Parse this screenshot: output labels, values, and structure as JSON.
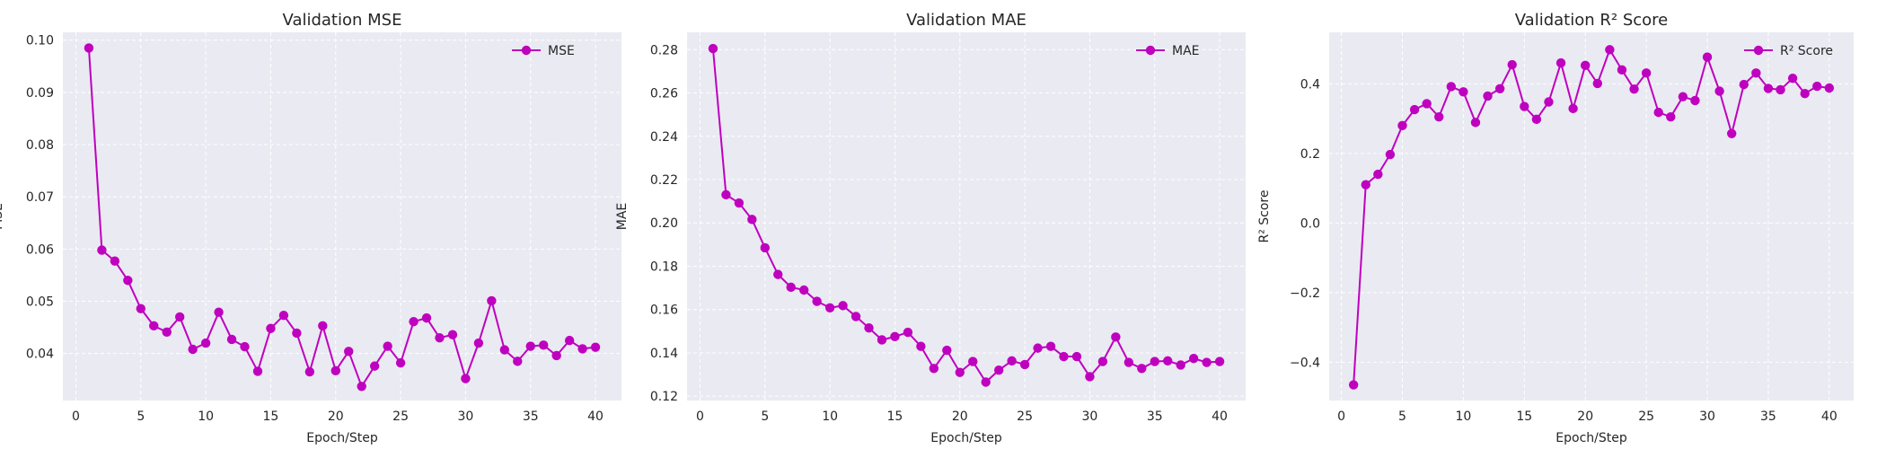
{
  "chart_data": [
    {
      "type": "line",
      "title": "Validation MSE",
      "xlabel": "Epoch/Step",
      "ylabel": "MSE",
      "xlim": [
        -1,
        42
      ],
      "ylim": [
        0.031,
        0.1015
      ],
      "xticks": [
        0,
        5,
        10,
        15,
        20,
        25,
        30,
        35,
        40
      ],
      "xtick_labels": [
        "0",
        "5",
        "10",
        "15",
        "20",
        "25",
        "30",
        "35",
        "40"
      ],
      "yticks": [
        0.04,
        0.05,
        0.06,
        0.07,
        0.08,
        0.09,
        0.1
      ],
      "ytick_labels": [
        "0.04",
        "0.05",
        "0.06",
        "0.07",
        "0.08",
        "0.09",
        "0.10"
      ],
      "grid": true,
      "legend": "top-right",
      "color": "#bf00bf",
      "series": [
        {
          "name": "MSE",
          "x": [
            1,
            2,
            3,
            4,
            5,
            6,
            7,
            8,
            9,
            10,
            11,
            12,
            13,
            14,
            15,
            16,
            17,
            18,
            19,
            20,
            21,
            22,
            23,
            24,
            25,
            26,
            27,
            28,
            29,
            30,
            31,
            32,
            33,
            34,
            35,
            36,
            37,
            38,
            39,
            40
          ],
          "y": [
            0.0985,
            0.0598,
            0.0577,
            0.054,
            0.0486,
            0.0453,
            0.0441,
            0.047,
            0.0408,
            0.042,
            0.0479,
            0.0427,
            0.0413,
            0.0366,
            0.0448,
            0.0473,
            0.0439,
            0.0365,
            0.0453,
            0.0367,
            0.0404,
            0.0337,
            0.0376,
            0.0414,
            0.0382,
            0.0461,
            0.0468,
            0.043,
            0.0436,
            0.0352,
            0.042,
            0.0501,
            0.0407,
            0.0385,
            0.0414,
            0.0416,
            0.0396,
            0.0425,
            0.0409,
            0.0412
          ]
        }
      ]
    },
    {
      "type": "line",
      "title": "Validation MAE",
      "xlabel": "Epoch/Step",
      "ylabel": "MAE",
      "xlim": [
        -1,
        42
      ],
      "ylim": [
        0.118,
        0.288
      ],
      "xticks": [
        0,
        5,
        10,
        15,
        20,
        25,
        30,
        35,
        40
      ],
      "xtick_labels": [
        "0",
        "5",
        "10",
        "15",
        "20",
        "25",
        "30",
        "35",
        "40"
      ],
      "yticks": [
        0.12,
        0.14,
        0.16,
        0.18,
        0.2,
        0.22,
        0.24,
        0.26,
        0.28
      ],
      "ytick_labels": [
        "0.12",
        "0.14",
        "0.16",
        "0.18",
        "0.20",
        "0.22",
        "0.24",
        "0.26",
        "0.28"
      ],
      "grid": true,
      "legend": "top-right",
      "color": "#bf00bf",
      "series": [
        {
          "name": "MAE",
          "x": [
            1,
            2,
            3,
            4,
            5,
            6,
            7,
            8,
            9,
            10,
            11,
            12,
            13,
            14,
            15,
            16,
            17,
            18,
            19,
            20,
            21,
            22,
            23,
            24,
            25,
            26,
            27,
            28,
            29,
            30,
            31,
            32,
            33,
            34,
            35,
            36,
            37,
            38,
            39,
            40
          ],
          "y": [
            0.2805,
            0.213,
            0.2092,
            0.2016,
            0.1885,
            0.1762,
            0.1703,
            0.169,
            0.1638,
            0.1608,
            0.1618,
            0.1568,
            0.1515,
            0.146,
            0.1475,
            0.1495,
            0.143,
            0.1328,
            0.1412,
            0.131,
            0.136,
            0.1265,
            0.132,
            0.1363,
            0.1346,
            0.1422,
            0.143,
            0.1383,
            0.1383,
            0.129,
            0.136,
            0.1473,
            0.1356,
            0.1328,
            0.136,
            0.1363,
            0.1344,
            0.1374,
            0.1356,
            0.136
          ]
        }
      ]
    },
    {
      "type": "line",
      "title": "Validation R² Score",
      "xlabel": "Epoch/Step",
      "ylabel": "R² Score",
      "xlim": [
        -1,
        42
      ],
      "ylim": [
        -0.51,
        0.548
      ],
      "xticks": [
        0,
        5,
        10,
        15,
        20,
        25,
        30,
        35,
        40
      ],
      "xtick_labels": [
        "0",
        "5",
        "10",
        "15",
        "20",
        "25",
        "30",
        "35",
        "40"
      ],
      "yticks": [
        -0.4,
        -0.2,
        0.0,
        0.2,
        0.4
      ],
      "ytick_labels": [
        "−0.4",
        "−0.2",
        "0.0",
        "0.2",
        "0.4"
      ],
      "grid": true,
      "legend": "top-right",
      "color": "#bf00bf",
      "series": [
        {
          "name": "R² Score",
          "x": [
            1,
            2,
            3,
            4,
            5,
            6,
            7,
            8,
            9,
            10,
            11,
            12,
            13,
            14,
            15,
            16,
            17,
            18,
            19,
            20,
            21,
            22,
            23,
            24,
            25,
            26,
            27,
            28,
            29,
            30,
            31,
            32,
            33,
            34,
            35,
            36,
            37,
            38,
            39,
            40
          ],
          "y": [
            -0.465,
            0.11,
            0.14,
            0.197,
            0.28,
            0.326,
            0.343,
            0.305,
            0.392,
            0.377,
            0.289,
            0.365,
            0.386,
            0.455,
            0.335,
            0.298,
            0.348,
            0.46,
            0.329,
            0.453,
            0.401,
            0.498,
            0.44,
            0.385,
            0.431,
            0.318,
            0.305,
            0.363,
            0.352,
            0.477,
            0.379,
            0.257,
            0.398,
            0.431,
            0.387,
            0.383,
            0.416,
            0.372,
            0.393,
            0.388
          ]
        }
      ]
    }
  ]
}
